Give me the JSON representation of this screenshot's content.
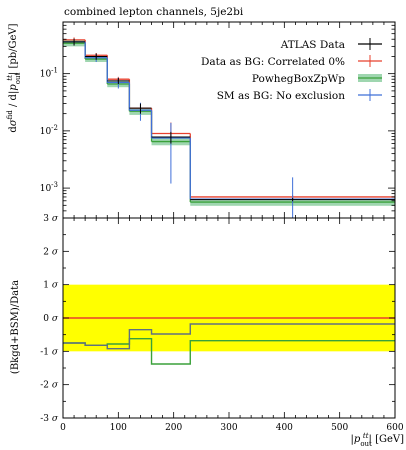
{
  "chart_data": [
    {
      "type": "step",
      "title": "combined lepton channels, 5je2bi",
      "ylabel": "dσ^fid / d|p_out^tt| [pb/GeV]",
      "yscale": "log",
      "ylim": [
        0.0003,
        0.8
      ],
      "xlim": [
        0,
        600
      ],
      "bin_edges": [
        0,
        40,
        80,
        120,
        160,
        230,
        600
      ],
      "ytick_values": [
        0.001,
        0.01,
        0.1
      ],
      "ytick_labels": [
        "10^-3",
        "10^-2",
        "10^-1"
      ],
      "legend_position": "top-right",
      "series": [
        {
          "name": "ATLAS Data",
          "color": "#000000",
          "kind": "points",
          "values": [
            0.36,
            0.2,
            0.075,
            0.025,
            0.0078,
            0.00063
          ],
          "err_low": [
            0.05,
            0.025,
            0.009,
            0.005,
            0.0018,
            4e-05
          ],
          "err_high": [
            0.05,
            0.025,
            0.009,
            0.005,
            0.0018,
            4e-05
          ]
        },
        {
          "name": "Data as BG: Correlated 0%",
          "color": "#e8412e",
          "kind": "step_err",
          "values": [
            0.39,
            0.21,
            0.08,
            0.025,
            0.009,
            0.0007
          ],
          "err_low": [
            0.04,
            0.02,
            0.008,
            0.003,
            0.001,
            5e-05
          ],
          "err_high": [
            0.04,
            0.02,
            0.008,
            0.003,
            0.005,
            5e-05
          ]
        },
        {
          "name": "PowhegBoxZpWp",
          "color": "#3aa13a",
          "fill": "#9fd6b0",
          "kind": "step_band",
          "values": [
            0.34,
            0.18,
            0.066,
            0.022,
            0.0065,
            0.00057
          ],
          "band_low": [
            0.3,
            0.16,
            0.058,
            0.019,
            0.0056,
            0.00049
          ],
          "band_high": [
            0.38,
            0.2,
            0.074,
            0.025,
            0.0074,
            0.00065
          ]
        },
        {
          "name": "SM as BG: No exclusion",
          "color": "#3f6fd8",
          "kind": "step_err",
          "values": [
            0.36,
            0.19,
            0.07,
            0.023,
            0.0075,
            0.00064
          ],
          "err_low": [
            0.04,
            0.03,
            0.015,
            0.008,
            0.0063,
            0.00062
          ],
          "err_high": [
            0.04,
            0.03,
            0.015,
            0.008,
            0.0063,
            0.0009
          ]
        }
      ]
    },
    {
      "type": "step",
      "ylabel": "(Bkgd+BSM)/Data",
      "xlabel": "|p_out^tt| [GeV]",
      "ylim": [
        -3,
        3
      ],
      "xlim": [
        0,
        600
      ],
      "bin_edges": [
        0,
        40,
        80,
        120,
        160,
        230,
        600
      ],
      "xtick_values": [
        0,
        100,
        200,
        300,
        400,
        500,
        600
      ],
      "ytick_values": [
        -3,
        -2,
        -1,
        0,
        1,
        2,
        3
      ],
      "ytick_labels": [
        "-3 σ",
        "-2 σ",
        "-1 σ",
        "0 σ",
        "1 σ",
        "2 σ",
        "3 σ"
      ],
      "band": {
        "low": -1,
        "high": 1,
        "color": "#ffff00"
      },
      "series": [
        {
          "name": "Data as BG: Correlated 0%",
          "color": "#e8412e",
          "values": [
            0,
            0,
            0,
            0,
            0,
            0
          ]
        },
        {
          "name": "PowhegBoxZpWp",
          "color": "#3aa13a",
          "values": [
            -0.75,
            -0.82,
            -0.78,
            -0.62,
            -1.38,
            -0.68
          ]
        },
        {
          "name": "SM as BG: No exclusion",
          "color": "#607080",
          "values": [
            -0.75,
            -0.82,
            -0.92,
            -0.35,
            -0.48,
            -0.18
          ]
        }
      ]
    }
  ]
}
